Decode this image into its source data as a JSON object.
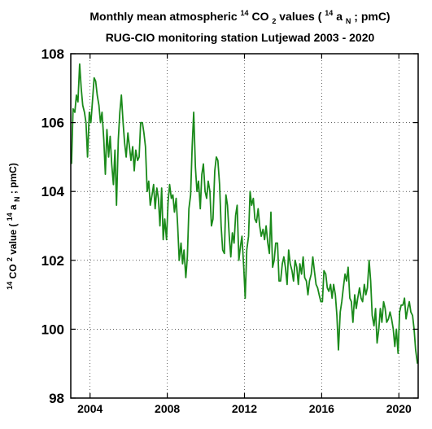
{
  "chart_data": {
    "type": "line",
    "title": {
      "line1_pre": "Monthly mean atmospheric ",
      "line1_sup": "14",
      "line1_mid": "CO",
      "line1_sub": "2",
      "line1_post1": " values (",
      "line1_sup2": "14",
      "line1_a": "a",
      "line1_sub2": "N",
      "line1_post2": "; pmC)",
      "line2": "RUG-CIO monitoring station Lutjewad 2003 - 2020"
    },
    "ylabel": {
      "sup1": "14",
      "co": "CO",
      "sup2": "2",
      "mid": " value (",
      "sup3": "14",
      "a": "a",
      "sub": "N",
      "post": "; pmC)"
    },
    "xlim": [
      2003.0,
      2021.0
    ],
    "ylim": [
      98,
      108
    ],
    "xticks": [
      2004,
      2008,
      2012,
      2016,
      2020
    ],
    "yticks": [
      98,
      100,
      102,
      104,
      106,
      108
    ],
    "grid": true,
    "colors": {
      "line": "#1a8a1a",
      "axis": "#000000",
      "grid": "#000000"
    },
    "series": [
      {
        "x": [
          2003.04,
          2003.12,
          2003.21,
          2003.29,
          2003.37,
          2003.46,
          2003.54,
          2003.62,
          2003.71,
          2003.79,
          2003.87,
          2003.96,
          2004.04,
          2004.12,
          2004.21,
          2004.29,
          2004.37,
          2004.46,
          2004.54,
          2004.62,
          2004.71,
          2004.79,
          2004.87,
          2004.96,
          2005.04,
          2005.12,
          2005.21,
          2005.29,
          2005.37,
          2005.46,
          2005.54,
          2005.62,
          2005.71,
          2005.79,
          2005.87,
          2005.96,
          2006.04,
          2006.12,
          2006.21,
          2006.29,
          2006.37,
          2006.46,
          2006.54,
          2006.62,
          2006.71,
          2006.79,
          2006.87,
          2006.96,
          2007.04,
          2007.12,
          2007.21,
          2007.29,
          2007.37,
          2007.46,
          2007.54,
          2007.62,
          2007.71,
          2007.79,
          2007.87,
          2007.96,
          2008.04,
          2008.12,
          2008.21,
          2008.29,
          2008.37,
          2008.46,
          2008.54,
          2008.62,
          2008.71,
          2008.79,
          2008.87,
          2008.96,
          2009.04,
          2009.12,
          2009.21,
          2009.29,
          2009.37,
          2009.46,
          2009.54,
          2009.62,
          2009.71,
          2009.79,
          2009.87,
          2009.96,
          2010.04,
          2010.12,
          2010.21,
          2010.29,
          2010.37,
          2010.46,
          2010.54,
          2010.62,
          2010.71,
          2010.79,
          2010.87,
          2010.96,
          2011.04,
          2011.12,
          2011.21,
          2011.29,
          2011.37,
          2011.46,
          2011.54,
          2011.62,
          2011.71,
          2011.79,
          2011.87,
          2011.96,
          2012.04,
          2012.12,
          2012.21,
          2012.29,
          2012.37,
          2012.46,
          2012.54,
          2012.62,
          2012.71,
          2012.79,
          2012.87,
          2012.96,
          2013.04,
          2013.12,
          2013.21,
          2013.29,
          2013.37,
          2013.46,
          2013.54,
          2013.62,
          2013.71,
          2013.79,
          2013.87,
          2013.96,
          2014.04,
          2014.12,
          2014.21,
          2014.29,
          2014.37,
          2014.46,
          2014.54,
          2014.62,
          2014.71,
          2014.79,
          2014.87,
          2014.96,
          2015.04,
          2015.12,
          2015.21,
          2015.29,
          2015.37,
          2015.46,
          2015.54,
          2015.62,
          2015.71,
          2015.79,
          2015.87,
          2015.96,
          2016.04,
          2016.12,
          2016.21,
          2016.29,
          2016.37,
          2016.46,
          2016.54,
          2016.62,
          2016.71,
          2016.79,
          2016.87,
          2016.96,
          2017.04,
          2017.12,
          2017.21,
          2017.29,
          2017.37,
          2017.46,
          2017.54,
          2017.62,
          2017.71,
          2017.79,
          2017.87,
          2017.96,
          2018.04,
          2018.12,
          2018.21,
          2018.29,
          2018.37,
          2018.46,
          2018.54,
          2018.62,
          2018.71,
          2018.79,
          2018.87,
          2018.96,
          2019.04,
          2019.12,
          2019.21,
          2019.29,
          2019.37,
          2019.46,
          2019.54,
          2019.62,
          2019.71,
          2019.79,
          2019.87,
          2019.96,
          2020.04,
          2020.12,
          2020.21,
          2020.29,
          2020.37,
          2020.46,
          2020.54,
          2020.62,
          2020.71,
          2020.79,
          2020.87,
          2020.96
        ],
        "y": [
          104.8,
          106.4,
          106.3,
          106.8,
          106.6,
          107.7,
          107.0,
          106.5,
          106.3,
          106.0,
          105.0,
          106.3,
          106.0,
          106.6,
          107.3,
          107.2,
          106.8,
          106.5,
          106.0,
          106.3,
          105.5,
          104.5,
          105.8,
          105.0,
          105.6,
          104.8,
          104.2,
          105.2,
          103.6,
          105.5,
          106.3,
          106.8,
          106.0,
          105.4,
          105.0,
          105.7,
          105.3,
          104.9,
          105.3,
          104.6,
          105.2,
          104.9,
          105.0,
          106.0,
          106.0,
          105.7,
          105.3,
          104.0,
          104.3,
          103.6,
          103.9,
          104.2,
          103.5,
          104.1,
          103.8,
          103.0,
          104.1,
          102.6,
          103.2,
          102.6,
          103.7,
          104.2,
          103.8,
          103.9,
          103.4,
          103.8,
          103.0,
          102.0,
          102.5,
          101.9,
          102.3,
          101.5,
          102.1,
          103.5,
          103.9,
          105.3,
          106.3,
          104.7,
          104.0,
          104.3,
          103.5,
          104.5,
          104.8,
          104.0,
          103.8,
          104.3,
          104.0,
          103.0,
          103.2,
          104.6,
          105.0,
          104.9,
          104.2,
          103.0,
          102.3,
          102.2,
          103.9,
          103.6,
          102.7,
          102.1,
          102.8,
          102.5,
          103.3,
          103.6,
          102.0,
          102.4,
          102.7,
          101.8,
          100.9,
          102.3,
          102.7,
          104.0,
          103.6,
          103.8,
          103.2,
          103.1,
          103.5,
          103.0,
          102.7,
          102.9,
          102.6,
          103.0,
          102.5,
          102.2,
          103.4,
          101.8,
          102.0,
          102.5,
          102.5,
          101.4,
          101.4,
          101.9,
          102.1,
          101.8,
          101.3,
          102.3,
          101.9,
          101.7,
          101.4,
          102.0,
          101.8,
          101.3,
          101.9,
          101.6,
          102.1,
          101.5,
          101.4,
          101.0,
          101.4,
          101.6,
          102.1,
          101.7,
          101.3,
          101.2,
          101.0,
          100.8,
          100.8,
          101.7,
          101.6,
          101.2,
          101.1,
          101.3,
          100.9,
          101.3,
          101.0,
          100.4,
          99.4,
          100.5,
          100.8,
          101.2,
          101.6,
          101.4,
          101.8,
          100.9,
          100.8,
          100.2,
          101.0,
          100.6,
          100.9,
          101.2,
          100.9,
          100.8,
          101.3,
          101.0,
          101.2,
          102.0,
          101.4,
          100.4,
          100.1,
          100.6,
          99.6,
          100.0,
          100.6,
          100.2,
          100.8,
          100.6,
          100.2,
          100.3,
          100.5,
          100.3,
          100.0,
          99.5,
          100.0,
          99.3,
          100.5,
          100.7,
          100.7,
          100.9,
          100.3,
          100.6,
          100.8,
          100.5,
          100.4,
          100.0,
          99.4,
          99.0
        ]
      }
    ]
  }
}
